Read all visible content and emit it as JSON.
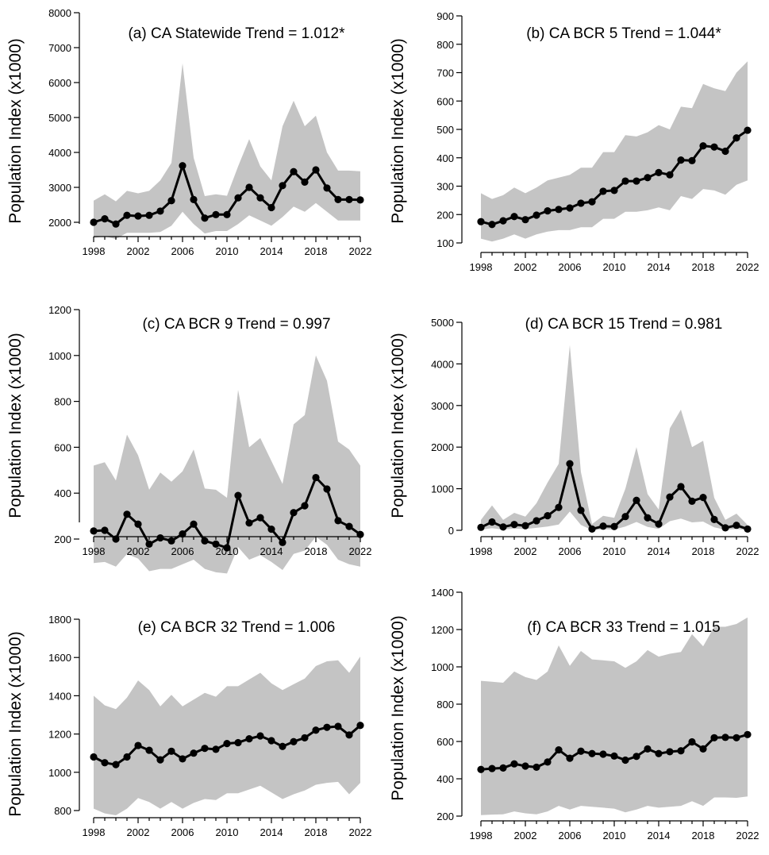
{
  "chart_data": [
    {
      "type": "line",
      "title": "(a) CA Statewide Trend = 1.012*",
      "ylabel": "Population Index (x1000)",
      "ylim": [
        1500,
        8000
      ],
      "yticks": [
        2000,
        3000,
        4000,
        5000,
        6000,
        7000,
        8000
      ],
      "xticks": [
        1998,
        2002,
        2006,
        2010,
        2014,
        2018,
        2022
      ],
      "x": [
        1998,
        1999,
        2000,
        2001,
        2002,
        2003,
        2004,
        2005,
        2006,
        2007,
        2008,
        2009,
        2010,
        2011,
        2012,
        2013,
        2014,
        2015,
        2016,
        2017,
        2018,
        2019,
        2020,
        2021,
        2022
      ],
      "values": [
        2000,
        2100,
        1950,
        2200,
        2180,
        2200,
        2320,
        2620,
        3620,
        2650,
        2120,
        2220,
        2220,
        2700,
        3000,
        2700,
        2420,
        3050,
        3450,
        3150,
        3500,
        2980,
        2650,
        2650,
        2640
      ],
      "lower": [
        1550,
        1600,
        1520,
        1700,
        1700,
        1700,
        1720,
        1900,
        2300,
        1950,
        1680,
        1750,
        1750,
        1950,
        2200,
        2050,
        1900,
        2150,
        2450,
        2300,
        2550,
        2300,
        2050,
        2050,
        2050
      ],
      "upper": [
        2620,
        2800,
        2600,
        2900,
        2830,
        2900,
        3200,
        3700,
        6550,
        3850,
        2750,
        2800,
        2760,
        3600,
        4380,
        3600,
        3200,
        4750,
        5480,
        4750,
        5050,
        4000,
        3480,
        3480,
        3460
      ]
    },
    {
      "type": "line",
      "title": "(b) CA BCR 5 Trend = 1.044*",
      "ylabel": "Population Index (x1000)",
      "ylim": [
        100,
        900
      ],
      "yticks": [
        100,
        200,
        300,
        400,
        500,
        600,
        700,
        800,
        900
      ],
      "xticks": [
        1998,
        2002,
        2006,
        2010,
        2014,
        2018,
        2022
      ],
      "x": [
        1998,
        1999,
        2000,
        2001,
        2002,
        2003,
        2004,
        2005,
        2006,
        2007,
        2008,
        2009,
        2010,
        2011,
        2012,
        2013,
        2014,
        2015,
        2016,
        2017,
        2018,
        2019,
        2020,
        2021,
        2022
      ],
      "values": [
        175,
        165,
        178,
        193,
        182,
        198,
        213,
        218,
        223,
        240,
        245,
        282,
        285,
        318,
        318,
        330,
        348,
        340,
        392,
        390,
        442,
        438,
        423,
        470,
        497
      ],
      "lower": [
        115,
        105,
        115,
        130,
        115,
        130,
        140,
        145,
        145,
        155,
        155,
        185,
        185,
        210,
        210,
        215,
        225,
        215,
        265,
        255,
        290,
        285,
        270,
        305,
        320
      ],
      "upper": [
        275,
        255,
        268,
        295,
        275,
        295,
        320,
        330,
        340,
        365,
        365,
        420,
        420,
        480,
        475,
        490,
        515,
        500,
        580,
        575,
        660,
        645,
        635,
        700,
        740
      ]
    },
    {
      "type": "line",
      "title": "(c) CA BCR 9 Trend = 0.997",
      "ylabel": "Population Index (x1000)",
      "ylim": [
        0,
        1200
      ],
      "yticks": [
        200,
        400,
        600,
        800,
        1000,
        1200
      ],
      "xticks": [
        1998,
        2002,
        2006,
        2010,
        2014,
        2018,
        2022
      ],
      "x": [
        1998,
        1999,
        2000,
        2001,
        2002,
        2003,
        2004,
        2005,
        2006,
        2007,
        2008,
        2009,
        2010,
        2011,
        2012,
        2013,
        2014,
        2015,
        2016,
        2017,
        2018,
        2019,
        2020,
        2021,
        2022
      ],
      "values": [
        235,
        238,
        200,
        308,
        265,
        178,
        205,
        192,
        222,
        265,
        192,
        178,
        162,
        390,
        270,
        293,
        243,
        185,
        315,
        345,
        468,
        418,
        280,
        255,
        220
      ],
      "lower": [
        95,
        100,
        80,
        135,
        115,
        60,
        70,
        70,
        90,
        110,
        70,
        55,
        50,
        165,
        110,
        130,
        100,
        65,
        135,
        150,
        210,
        175,
        110,
        90,
        80
      ],
      "upper": [
        520,
        535,
        455,
        655,
        565,
        415,
        490,
        450,
        495,
        590,
        420,
        415,
        380,
        850,
        600,
        640,
        540,
        440,
        700,
        740,
        1000,
        890,
        625,
        590,
        520
      ]
    },
    {
      "type": "line",
      "title": "(d) CA BCR 15 Trend = 0.981",
      "ylabel": "Population Index (x1000)",
      "ylim": [
        0,
        5000
      ],
      "yticks": [
        0,
        1000,
        2000,
        3000,
        4000,
        5000
      ],
      "xticks": [
        1998,
        2002,
        2006,
        2010,
        2014,
        2018,
        2022
      ],
      "x": [
        1998,
        1999,
        2000,
        2001,
        2002,
        2003,
        2004,
        2005,
        2006,
        2007,
        2008,
        2009,
        2010,
        2011,
        2012,
        2013,
        2014,
        2015,
        2016,
        2017,
        2018,
        2019,
        2020,
        2021,
        2022
      ],
      "values": [
        70,
        200,
        80,
        140,
        110,
        230,
        350,
        550,
        1600,
        480,
        30,
        100,
        90,
        330,
        720,
        300,
        150,
        800,
        1050,
        700,
        790,
        260,
        60,
        120,
        30
      ],
      "lower": [
        20,
        50,
        20,
        40,
        30,
        60,
        90,
        140,
        450,
        130,
        5,
        25,
        20,
        90,
        200,
        80,
        35,
        220,
        280,
        190,
        210,
        70,
        15,
        30,
        5
      ],
      "upper": [
        250,
        600,
        250,
        420,
        330,
        650,
        1150,
        1600,
        4450,
        1400,
        150,
        350,
        300,
        1000,
        2000,
        870,
        500,
        2450,
        2900,
        2000,
        2150,
        780,
        250,
        400,
        130
      ]
    },
    {
      "type": "line",
      "title": "(e) CA BCR 32 Trend = 1.006",
      "ylabel": "Population Index (x1000)",
      "ylim": [
        760,
        1800
      ],
      "yticks": [
        800,
        1000,
        1200,
        1400,
        1600,
        1800
      ],
      "xticks": [
        1998,
        2002,
        2006,
        2010,
        2014,
        2018,
        2022
      ],
      "x": [
        1998,
        1999,
        2000,
        2001,
        2002,
        2003,
        2004,
        2005,
        2006,
        2007,
        2008,
        2009,
        2010,
        2011,
        2012,
        2013,
        2014,
        2015,
        2016,
        2017,
        2018,
        2019,
        2020,
        2021,
        2022
      ],
      "values": [
        1080,
        1050,
        1040,
        1080,
        1140,
        1115,
        1065,
        1110,
        1070,
        1100,
        1125,
        1120,
        1150,
        1155,
        1175,
        1190,
        1165,
        1135,
        1160,
        1180,
        1220,
        1235,
        1240,
        1195,
        1245
      ],
      "lower": [
        810,
        785,
        775,
        810,
        865,
        845,
        810,
        845,
        810,
        840,
        860,
        855,
        890,
        890,
        910,
        930,
        895,
        860,
        885,
        905,
        935,
        945,
        950,
        885,
        945
      ],
      "upper": [
        1400,
        1350,
        1330,
        1390,
        1480,
        1430,
        1345,
        1405,
        1345,
        1380,
        1415,
        1395,
        1450,
        1450,
        1485,
        1520,
        1465,
        1430,
        1460,
        1490,
        1555,
        1580,
        1585,
        1520,
        1605
      ]
    },
    {
      "type": "line",
      "title": "(f) CA BCR 33 Trend = 1.015",
      "ylabel": "Population Index (x1000)",
      "ylim": [
        200,
        1400
      ],
      "yticks": [
        200,
        400,
        600,
        800,
        1000,
        1200,
        1400
      ],
      "xticks": [
        1998,
        2002,
        2006,
        2010,
        2014,
        2018,
        2022
      ],
      "x": [
        1998,
        1999,
        2000,
        2001,
        2002,
        2003,
        2004,
        2005,
        2006,
        2007,
        2008,
        2009,
        2010,
        2011,
        2012,
        2013,
        2014,
        2015,
        2016,
        2017,
        2018,
        2019,
        2020,
        2021,
        2022
      ],
      "values": [
        450,
        455,
        458,
        480,
        468,
        462,
        490,
        555,
        510,
        548,
        535,
        532,
        522,
        500,
        520,
        560,
        535,
        545,
        550,
        598,
        560,
        620,
        622,
        620,
        637
      ],
      "lower": [
        205,
        208,
        210,
        225,
        215,
        210,
        225,
        255,
        235,
        255,
        250,
        245,
        240,
        220,
        235,
        255,
        245,
        250,
        255,
        280,
        255,
        300,
        300,
        298,
        305
      ],
      "upper": [
        925,
        920,
        915,
        975,
        945,
        930,
        975,
        1115,
        1005,
        1085,
        1040,
        1035,
        1030,
        995,
        1030,
        1090,
        1055,
        1070,
        1080,
        1175,
        1110,
        1215,
        1215,
        1230,
        1265
      ]
    }
  ]
}
